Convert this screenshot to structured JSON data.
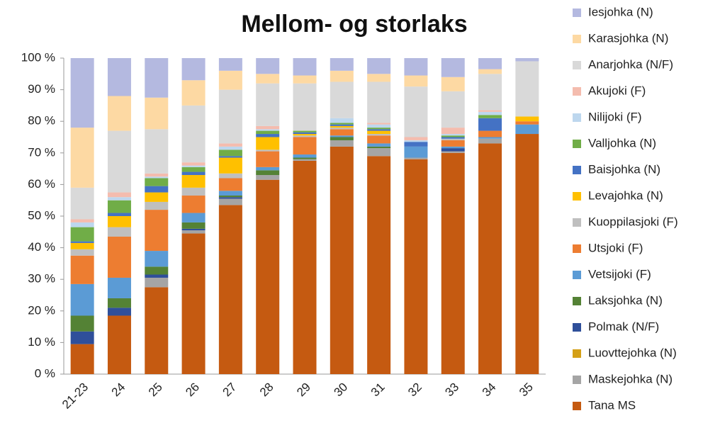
{
  "chart_data": {
    "type": "stacked_bar",
    "title": "Mellom- og storlaks",
    "categories": [
      "21-23",
      "24",
      "25",
      "26",
      "27",
      "28",
      "29",
      "30",
      "31",
      "32",
      "33",
      "34",
      "35"
    ],
    "ylim": [
      0,
      100
    ],
    "yticks": [
      {
        "value": 0,
        "label": "0 %"
      },
      {
        "value": 10,
        "label": "10 %"
      },
      {
        "value": 20,
        "label": "20 %"
      },
      {
        "value": 30,
        "label": "30 %"
      },
      {
        "value": 40,
        "label": "40 %"
      },
      {
        "value": 50,
        "label": "50 %"
      },
      {
        "value": 60,
        "label": "60 %"
      },
      {
        "value": 70,
        "label": "70 %"
      },
      {
        "value": 80,
        "label": "80 %"
      },
      {
        "value": 90,
        "label": "90 %"
      },
      {
        "value": 100,
        "label": "100 %"
      }
    ],
    "grid": false,
    "legend": "right",
    "series": [
      {
        "name": "Tana MS",
        "color": "#c55a11",
        "values": [
          9.5,
          18.5,
          27.5,
          44.5,
          53.5,
          61.5,
          67.5,
          72,
          69,
          68,
          70,
          73,
          76
        ]
      },
      {
        "name": "Maskejohka (N)",
        "color": "#a5a5a5",
        "values": [
          0,
          0,
          3,
          1,
          2,
          1.5,
          0.5,
          2,
          2.5,
          0.5,
          0.5,
          1.5,
          0
        ]
      },
      {
        "name": "Luovttejohka (N)",
        "color": "#d4a017",
        "values": [
          0,
          0,
          0,
          0,
          0,
          0,
          0,
          0,
          0,
          0,
          0,
          0,
          0
        ]
      },
      {
        "name": "Polmak (N/F)",
        "color": "#2f4f9a",
        "values": [
          4,
          2.5,
          1,
          0.5,
          0.5,
          0,
          0,
          0,
          0,
          0,
          1,
          0,
          0
        ]
      },
      {
        "name": "Laksjohka (N)",
        "color": "#548235",
        "values": [
          5,
          3,
          2.5,
          2,
          0.5,
          1.5,
          0.5,
          1,
          0.5,
          0,
          0,
          0,
          0
        ]
      },
      {
        "name": "Vetsijoki (F)",
        "color": "#5b9bd5",
        "values": [
          10,
          6.5,
          5,
          3,
          1.5,
          1,
          1,
          0.5,
          1,
          3.5,
          0.5,
          0.5,
          3
        ]
      },
      {
        "name": "Utsjoki (F)",
        "color": "#ed7d31",
        "values": [
          9,
          13,
          13,
          5.5,
          4,
          5,
          5.5,
          2,
          2.5,
          0,
          2,
          2,
          1
        ]
      },
      {
        "name": "Kuoppilasjoki (F)",
        "color": "#bfbfbf",
        "values": [
          2,
          3,
          2.5,
          2.5,
          1.5,
          0.5,
          0.5,
          0.5,
          0.5,
          0,
          0.5,
          0,
          0
        ]
      },
      {
        "name": "Levajohka (N)",
        "color": "#ffc000",
        "values": [
          2,
          3.5,
          3,
          4,
          5,
          4,
          0.5,
          0.5,
          1,
          0,
          0,
          0,
          1.5
        ]
      },
      {
        "name": "Baisjohka (N)",
        "color": "#4472c4",
        "values": [
          0.5,
          1,
          2,
          1,
          0.5,
          1,
          0.5,
          0.5,
          0.5,
          1.5,
          0.5,
          4,
          0
        ]
      },
      {
        "name": "Valljohka (N)",
        "color": "#70ad47",
        "values": [
          4.5,
          4,
          2.5,
          1.5,
          2,
          1,
          0.5,
          0.5,
          0.5,
          0,
          0.5,
          1,
          0
        ]
      },
      {
        "name": "Nilijoki (F)",
        "color": "#bdd7ee",
        "values": [
          1.5,
          1,
          0.5,
          0.5,
          1,
          0.5,
          0,
          1.5,
          1,
          0.5,
          0.5,
          1,
          0
        ]
      },
      {
        "name": "Akujoki (F)",
        "color": "#f4bcae",
        "values": [
          1,
          1.5,
          1,
          1,
          1,
          1,
          0,
          0,
          0.5,
          1,
          2,
          0.5,
          0
        ]
      },
      {
        "name": "Anarjohka (N/F)",
        "color": "#d9d9d9",
        "values": [
          10,
          19.5,
          14,
          18,
          17,
          13.5,
          15,
          11.5,
          13,
          16,
          11.5,
          11.5,
          17.5
        ]
      },
      {
        "name": "Karasjohka (N)",
        "color": "#fdd9a3",
        "values": [
          19,
          11,
          10,
          8,
          6,
          3,
          2.5,
          3.5,
          2.5,
          3.5,
          4.5,
          1.5,
          0
        ]
      },
      {
        "name": "Iesjohka (N)",
        "color": "#b4b9e0",
        "values": [
          22,
          12,
          12.5,
          7,
          4,
          5,
          5.5,
          4,
          5,
          5.5,
          6,
          3.5,
          1
        ]
      }
    ]
  }
}
